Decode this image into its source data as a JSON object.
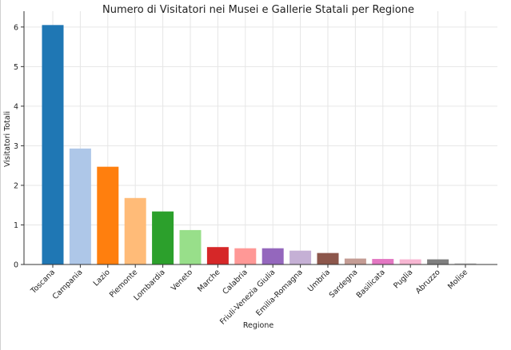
{
  "chart_data": {
    "type": "bar",
    "title": "Numero di Visitatori nei Musei e Gallerie Statali per Regione",
    "xlabel": "Regione",
    "ylabel": "Visitatori Totali",
    "ylim": [
      0,
      6.4
    ],
    "yticks": [
      0,
      1,
      2,
      3,
      4,
      5,
      6
    ],
    "grid": true,
    "categories": [
      "Toscana",
      "Campania",
      "Lazio",
      "Piemonte",
      "Lombardia",
      "Veneto",
      "Marche",
      "Calabria",
      "Friuli-Venezia Giulia",
      "Emilia-Romagna",
      "Umbria",
      "Sardegna",
      "Basilicata",
      "Puglia",
      "Abruzzo",
      "Molise"
    ],
    "values": [
      6.05,
      2.93,
      2.47,
      1.68,
      1.34,
      0.87,
      0.44,
      0.41,
      0.41,
      0.35,
      0.29,
      0.15,
      0.14,
      0.13,
      0.13,
      0.03
    ],
    "colors": [
      "#1f77b4",
      "#aec7e8",
      "#ff7f0e",
      "#ffbb78",
      "#2ca02c",
      "#98df8a",
      "#d62728",
      "#ff9896",
      "#9467bd",
      "#c5b0d5",
      "#8c564b",
      "#c49c94",
      "#e377c2",
      "#f7b6d2",
      "#7f7f7f",
      "#c7c7c7"
    ]
  }
}
